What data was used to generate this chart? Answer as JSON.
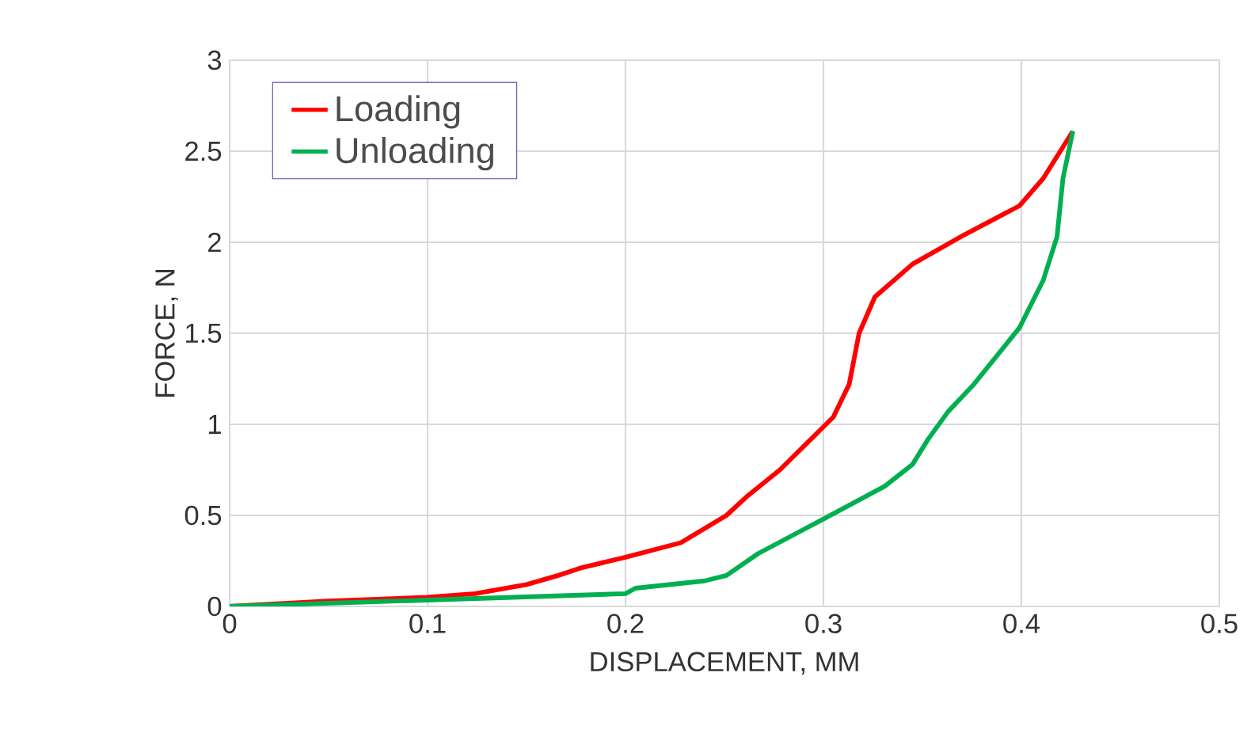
{
  "chart_data": {
    "type": "line",
    "xlabel": "DISPLACEMENT, MM",
    "ylabel": "FORCE, N",
    "xlim": [
      0,
      0.5
    ],
    "ylim": [
      0,
      3
    ],
    "xticks": [
      0,
      0.1,
      0.2,
      0.3,
      0.4,
      0.5
    ],
    "yticks": [
      0,
      0.5,
      1,
      1.5,
      2,
      2.5,
      3
    ],
    "grid": true,
    "legend": "top left",
    "marker": "none",
    "line_style": "solid",
    "series": [
      {
        "name": "Loading",
        "color": "#ff0000",
        "x": [
          0,
          0.05,
          0.1,
          0.124,
          0.15,
          0.166,
          0.177,
          0.2,
          0.228,
          0.251,
          0.262,
          0.278,
          0.305,
          0.313,
          0.318,
          0.326,
          0.345,
          0.371,
          0.399,
          0.411,
          0.426
        ],
        "values": [
          0,
          0.03,
          0.05,
          0.07,
          0.12,
          0.17,
          0.21,
          0.27,
          0.35,
          0.5,
          0.61,
          0.75,
          1.04,
          1.22,
          1.5,
          1.7,
          1.88,
          2.04,
          2.2,
          2.35,
          2.61
        ]
      },
      {
        "name": "Unloading",
        "color": "#00b050",
        "x": [
          0,
          0.1,
          0.2,
          0.205,
          0.24,
          0.251,
          0.267,
          0.3,
          0.331,
          0.345,
          0.353,
          0.363,
          0.376,
          0.399,
          0.411,
          0.418,
          0.421,
          0.426
        ],
        "values": [
          0,
          0.035,
          0.07,
          0.1,
          0.14,
          0.17,
          0.29,
          0.48,
          0.66,
          0.78,
          0.92,
          1.07,
          1.22,
          1.53,
          1.79,
          2.03,
          2.35,
          2.61
        ]
      }
    ]
  }
}
